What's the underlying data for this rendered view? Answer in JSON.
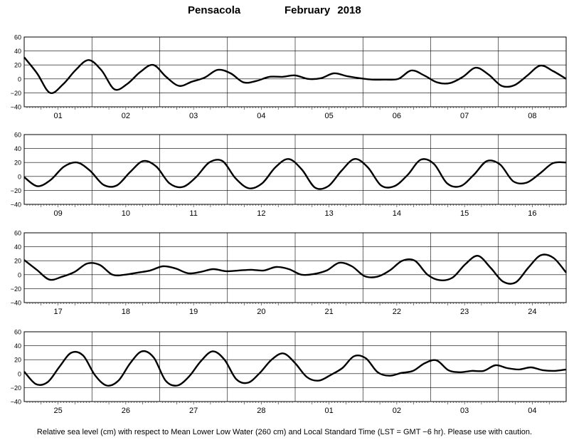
{
  "title": {
    "station": "Pensacola",
    "month_year": "February   2018"
  },
  "caption": "Relative sea level (cm) with respect to Mean Lower Low Water (260 cm) and Local Standard Time (LST = GMT −6 hr). Please use with caution.",
  "chart_data": {
    "type": "line",
    "y_tick_labels": [
      "60",
      "40",
      "20",
      "0",
      "−20",
      "−40"
    ],
    "ylim": [
      -40,
      60
    ],
    "grid": true,
    "line_color": "#000000",
    "panels": [
      {
        "day_labels": [
          "01",
          "02",
          "03",
          "04",
          "05",
          "06",
          "07",
          "08"
        ],
        "values": [
          31,
          8,
          -20,
          -8,
          13,
          27,
          12,
          -15,
          -7,
          10,
          20,
          3,
          -10,
          -4,
          2,
          13,
          8,
          -5,
          -3,
          3,
          3,
          5,
          0,
          1,
          8,
          4,
          1,
          -1,
          -1,
          0,
          12,
          5,
          -5,
          -6,
          3,
          16,
          6,
          -10,
          -9,
          5,
          19,
          11,
          0
        ]
      },
      {
        "day_labels": [
          "09",
          "10",
          "11",
          "12",
          "13",
          "14",
          "15",
          "16"
        ],
        "values": [
          -1,
          -14,
          -5,
          14,
          20,
          8,
          -12,
          -13,
          6,
          22,
          14,
          -10,
          -15,
          -1,
          20,
          22,
          -3,
          -17,
          -10,
          13,
          25,
          10,
          -16,
          -14,
          8,
          25,
          13,
          -13,
          -14,
          2,
          24,
          18,
          -10,
          -14,
          2,
          22,
          17,
          -7,
          -9,
          4,
          19,
          20
        ]
      },
      {
        "day_labels": [
          "17",
          "18",
          "19",
          "20",
          "21",
          "22",
          "23",
          "24"
        ],
        "values": [
          21,
          7,
          -7,
          -3,
          4,
          16,
          14,
          0,
          0,
          3,
          6,
          12,
          9,
          2,
          4,
          8,
          5,
          6,
          7,
          6,
          11,
          8,
          0,
          1,
          6,
          17,
          12,
          -2,
          -3,
          6,
          20,
          20,
          0,
          -8,
          -4,
          15,
          27,
          10,
          -10,
          -11,
          10,
          28,
          24,
          3
        ]
      },
      {
        "day_labels": [
          "25",
          "26",
          "27",
          "28",
          "01",
          "02",
          "03",
          "04"
        ],
        "values": [
          3,
          -15,
          -12,
          10,
          30,
          26,
          -2,
          -17,
          -10,
          15,
          32,
          23,
          -10,
          -17,
          -4,
          18,
          32,
          20,
          -8,
          -13,
          1,
          20,
          29,
          15,
          -5,
          -10,
          -2,
          8,
          25,
          22,
          2,
          -3,
          1,
          4,
          15,
          19,
          5,
          2,
          4,
          4,
          12,
          8,
          6,
          9,
          5,
          4,
          6
        ]
      }
    ]
  }
}
